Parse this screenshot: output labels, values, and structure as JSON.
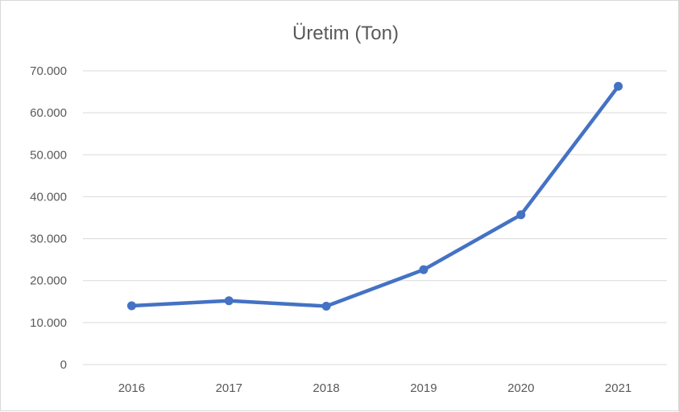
{
  "chart_data": {
    "type": "line",
    "title": "Üretim (Ton)",
    "xlabel": "",
    "ylabel": "",
    "categories": [
      "2016",
      "2017",
      "2018",
      "2019",
      "2020",
      "2021"
    ],
    "series": [
      {
        "values": [
          14000,
          15200,
          13900,
          22600,
          35700,
          66300
        ]
      }
    ],
    "ylim": [
      0,
      70000
    ],
    "yticks": [
      0,
      10000,
      20000,
      30000,
      40000,
      50000,
      60000,
      70000
    ],
    "ytick_labels": [
      "0",
      "10.000",
      "20.000",
      "30.000",
      "40.000",
      "50.000",
      "60.000",
      "70.000"
    ],
    "grid": true,
    "legend": "none",
    "colors": {
      "series": "#4472c4",
      "grid": "#d9d9d9",
      "text": "#595959"
    }
  }
}
